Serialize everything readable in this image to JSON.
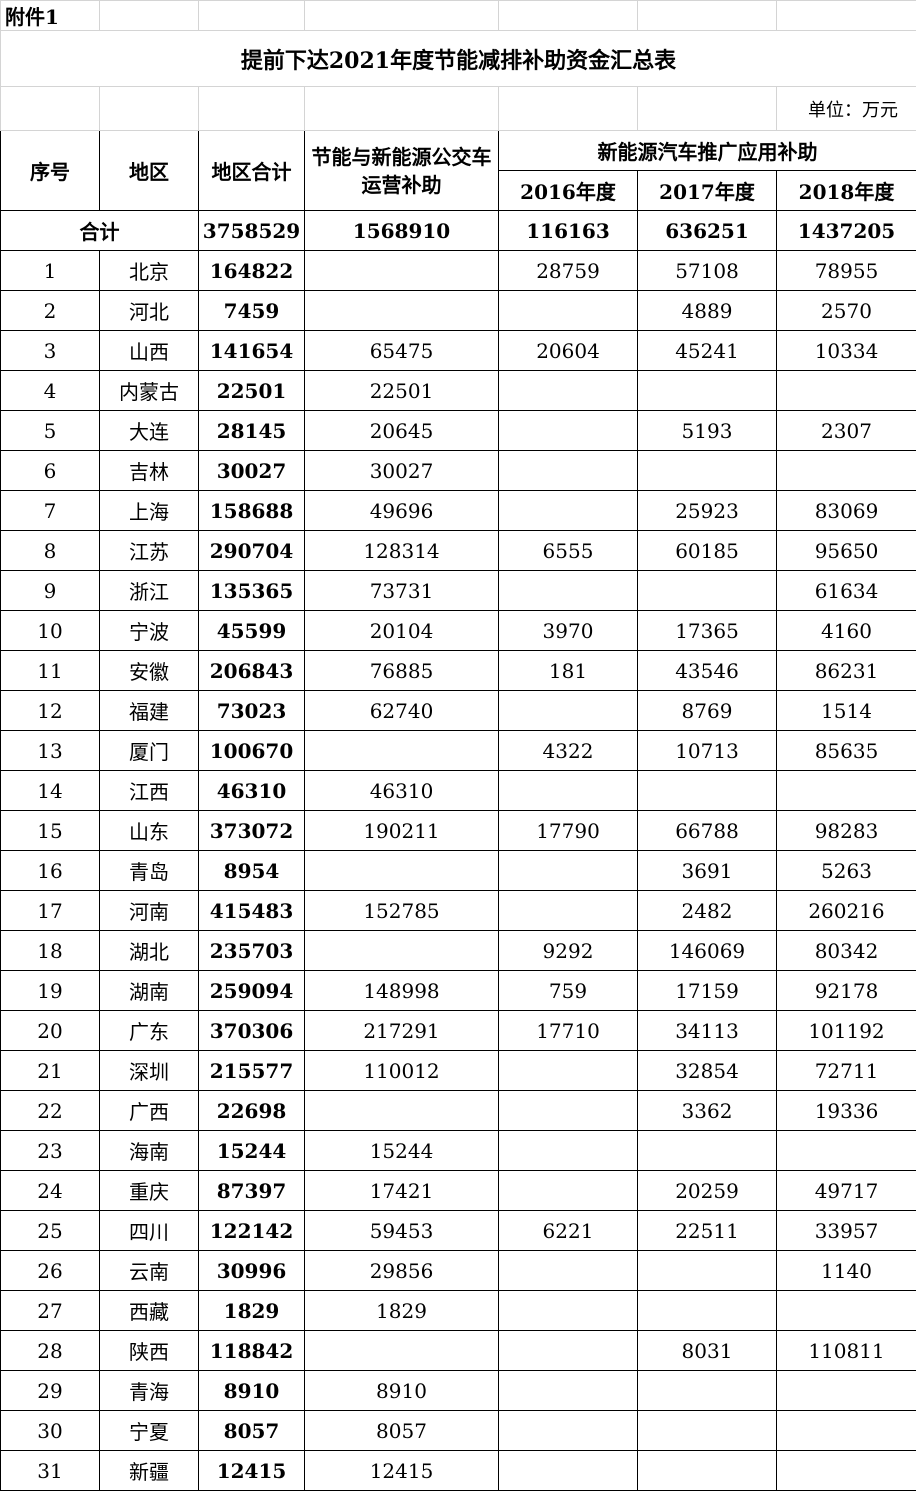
{
  "attachment_label": "附件1",
  "title": "提前下达2021年度节能减排补助资金汇总表",
  "unit": "单位：万元",
  "headers": {
    "no": "序号",
    "region": "地区",
    "region_total": "地区合计",
    "bus": "节能与新能源公交车运营补助",
    "nev_group": "新能源汽车推广应用补助",
    "y2016": "2016年度",
    "y2017": "2017年度",
    "y2018": "2018年度"
  },
  "total_row": {
    "label": "合计",
    "region_total": "3758529",
    "bus": "1568910",
    "y2016": "116163",
    "y2017": "636251",
    "y2018": "1437205"
  },
  "rows": [
    [
      "1",
      "北京",
      "164822",
      "",
      "28759",
      "57108",
      "78955"
    ],
    [
      "2",
      "河北",
      "7459",
      "",
      "",
      "4889",
      "2570"
    ],
    [
      "3",
      "山西",
      "141654",
      "65475",
      "20604",
      "45241",
      "10334"
    ],
    [
      "4",
      "内蒙古",
      "22501",
      "22501",
      "",
      "",
      ""
    ],
    [
      "5",
      "大连",
      "28145",
      "20645",
      "",
      "5193",
      "2307"
    ],
    [
      "6",
      "吉林",
      "30027",
      "30027",
      "",
      "",
      ""
    ],
    [
      "7",
      "上海",
      "158688",
      "49696",
      "",
      "25923",
      "83069"
    ],
    [
      "8",
      "江苏",
      "290704",
      "128314",
      "6555",
      "60185",
      "95650"
    ],
    [
      "9",
      "浙江",
      "135365",
      "73731",
      "",
      "",
      "61634"
    ],
    [
      "10",
      "宁波",
      "45599",
      "20104",
      "3970",
      "17365",
      "4160"
    ],
    [
      "11",
      "安徽",
      "206843",
      "76885",
      "181",
      "43546",
      "86231"
    ],
    [
      "12",
      "福建",
      "73023",
      "62740",
      "",
      "8769",
      "1514"
    ],
    [
      "13",
      "厦门",
      "100670",
      "",
      "4322",
      "10713",
      "85635"
    ],
    [
      "14",
      "江西",
      "46310",
      "46310",
      "",
      "",
      ""
    ],
    [
      "15",
      "山东",
      "373072",
      "190211",
      "17790",
      "66788",
      "98283"
    ],
    [
      "16",
      "青岛",
      "8954",
      "",
      "",
      "3691",
      "5263"
    ],
    [
      "17",
      "河南",
      "415483",
      "152785",
      "",
      "2482",
      "260216"
    ],
    [
      "18",
      "湖北",
      "235703",
      "",
      "9292",
      "146069",
      "80342"
    ],
    [
      "19",
      "湖南",
      "259094",
      "148998",
      "759",
      "17159",
      "92178"
    ],
    [
      "20",
      "广东",
      "370306",
      "217291",
      "17710",
      "34113",
      "101192"
    ],
    [
      "21",
      "深圳",
      "215577",
      "110012",
      "",
      "32854",
      "72711"
    ],
    [
      "22",
      "广西",
      "22698",
      "",
      "",
      "3362",
      "19336"
    ],
    [
      "23",
      "海南",
      "15244",
      "15244",
      "",
      "",
      ""
    ],
    [
      "24",
      "重庆",
      "87397",
      "17421",
      "",
      "20259",
      "49717"
    ],
    [
      "25",
      "四川",
      "122142",
      "59453",
      "6221",
      "22511",
      "33957"
    ],
    [
      "26",
      "云南",
      "30996",
      "29856",
      "",
      "",
      "1140"
    ],
    [
      "27",
      "西藏",
      "1829",
      "1829",
      "",
      "",
      ""
    ],
    [
      "28",
      "陕西",
      "118842",
      "",
      "",
      "8031",
      "110811"
    ],
    [
      "29",
      "青海",
      "8910",
      "8910",
      "",
      "",
      ""
    ],
    [
      "30",
      "宁夏",
      "8057",
      "8057",
      "",
      "",
      ""
    ],
    [
      "31",
      "新疆",
      "12415",
      "12415",
      "",
      "",
      ""
    ]
  ]
}
